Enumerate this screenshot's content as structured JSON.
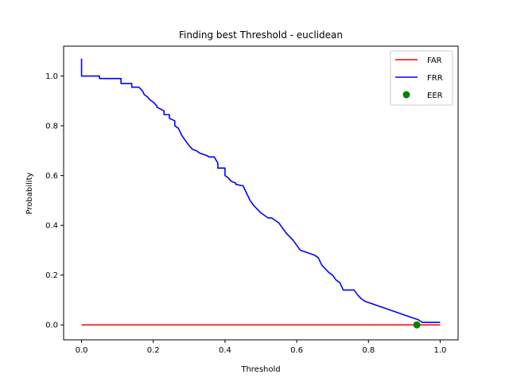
{
  "chart_data": {
    "type": "line",
    "title": "Finding best Threshold - euclidean",
    "xlabel": "Threshold",
    "ylabel": "Probability",
    "xlim": [
      -0.05,
      1.05
    ],
    "ylim": [
      -0.06,
      1.12
    ],
    "xticks": [
      0.0,
      0.2,
      0.4,
      0.6,
      0.8,
      1.0
    ],
    "xtick_labels": [
      "0.0",
      "0.2",
      "0.4",
      "0.6",
      "0.8",
      "1.0"
    ],
    "yticks": [
      0.0,
      0.2,
      0.4,
      0.6,
      0.8,
      1.0
    ],
    "ytick_labels": [
      "0.0",
      "0.2",
      "0.4",
      "0.6",
      "0.8",
      "1.0"
    ],
    "grid": false,
    "legend": {
      "placement": "top-right",
      "entries": [
        "FAR",
        "FRR",
        "EER"
      ]
    },
    "series": [
      {
        "name": "FAR",
        "color": "#ff0000",
        "style": "line",
        "x": [
          0.0,
          1.0
        ],
        "y": [
          0.0,
          0.0
        ]
      },
      {
        "name": "FRR",
        "color": "#0000ff",
        "style": "line",
        "x": [
          0.0,
          0.0,
          0.05,
          0.05,
          0.11,
          0.11,
          0.14,
          0.14,
          0.16,
          0.17,
          0.175,
          0.185,
          0.19,
          0.2,
          0.21,
          0.21,
          0.23,
          0.23,
          0.245,
          0.245,
          0.26,
          0.26,
          0.27,
          0.28,
          0.285,
          0.29,
          0.295,
          0.3,
          0.31,
          0.32,
          0.33,
          0.34,
          0.35,
          0.355,
          0.37,
          0.38,
          0.38,
          0.4,
          0.4,
          0.41,
          0.415,
          0.42,
          0.43,
          0.43,
          0.445,
          0.45,
          0.46,
          0.47,
          0.48,
          0.49,
          0.5,
          0.51,
          0.52,
          0.53,
          0.54,
          0.55,
          0.56,
          0.57,
          0.58,
          0.59,
          0.6,
          0.61,
          0.62,
          0.63,
          0.64,
          0.65,
          0.66,
          0.67,
          0.68,
          0.69,
          0.7,
          0.71,
          0.72,
          0.73,
          0.74,
          0.75,
          0.76,
          0.77,
          0.78,
          0.79,
          0.8,
          0.82,
          0.84,
          0.85,
          0.86,
          0.88,
          0.9,
          0.92,
          0.93,
          0.94,
          0.95,
          1.0
        ],
        "y": [
          1.07,
          1.0,
          1.0,
          0.99,
          0.99,
          0.97,
          0.97,
          0.955,
          0.955,
          0.94,
          0.925,
          0.915,
          0.905,
          0.895,
          0.88,
          0.875,
          0.86,
          0.845,
          0.845,
          0.83,
          0.82,
          0.8,
          0.79,
          0.76,
          0.75,
          0.74,
          0.73,
          0.72,
          0.705,
          0.7,
          0.69,
          0.685,
          0.68,
          0.675,
          0.675,
          0.65,
          0.63,
          0.63,
          0.6,
          0.59,
          0.58,
          0.575,
          0.57,
          0.565,
          0.56,
          0.56,
          0.53,
          0.5,
          0.48,
          0.465,
          0.45,
          0.44,
          0.43,
          0.43,
          0.42,
          0.41,
          0.39,
          0.37,
          0.355,
          0.34,
          0.32,
          0.3,
          0.295,
          0.29,
          0.285,
          0.28,
          0.27,
          0.24,
          0.225,
          0.21,
          0.2,
          0.18,
          0.17,
          0.14,
          0.14,
          0.14,
          0.14,
          0.12,
          0.105,
          0.095,
          0.09,
          0.08,
          0.07,
          0.065,
          0.06,
          0.05,
          0.04,
          0.03,
          0.025,
          0.02,
          0.01,
          0.01
        ]
      },
      {
        "name": "EER",
        "color": "#008000",
        "style": "scatter",
        "x": [
          0.935
        ],
        "y": [
          0.0
        ]
      }
    ]
  }
}
